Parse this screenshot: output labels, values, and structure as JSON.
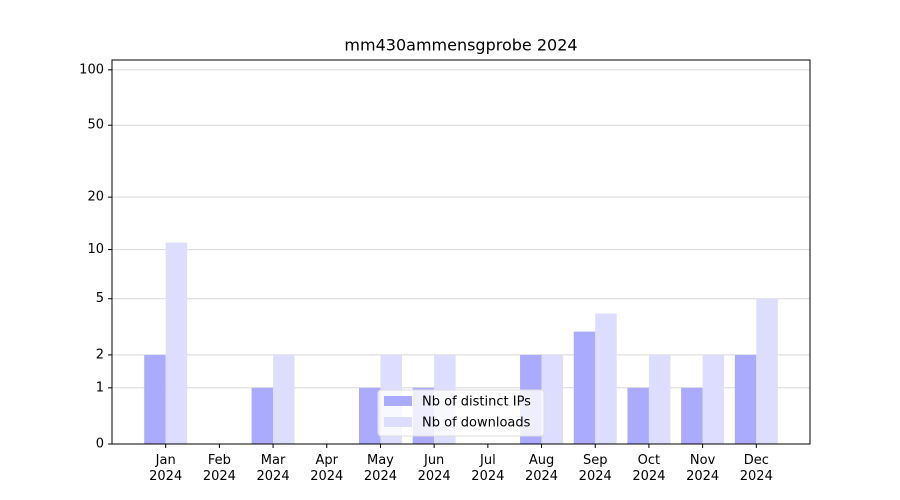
{
  "chart_data": {
    "type": "bar",
    "title": "mm430ammensgprobe 2024",
    "categories": [
      "Jan\n2024",
      "Feb\n2024",
      "Mar\n2024",
      "Apr\n2024",
      "May\n2024",
      "Jun\n2024",
      "Jul\n2024",
      "Aug\n2024",
      "Sep\n2024",
      "Oct\n2024",
      "Nov\n2024",
      "Dec\n2024"
    ],
    "series": [
      {
        "name": "Nb of distinct IPs",
        "color": "#aaaaff",
        "values": [
          2,
          0,
          1,
          0,
          1,
          1,
          0,
          2,
          3,
          1,
          1,
          2
        ]
      },
      {
        "name": "Nb of downloads",
        "color": "#ddddff",
        "values": [
          11,
          0,
          2,
          0,
          2,
          2,
          0,
          2,
          4,
          2,
          2,
          5
        ]
      }
    ],
    "yscale": "log1p",
    "ylim": [
      0,
      113
    ],
    "yticks": [
      0,
      1,
      2,
      5,
      10,
      20,
      50,
      100
    ],
    "grid": true,
    "legend": "lower center"
  }
}
